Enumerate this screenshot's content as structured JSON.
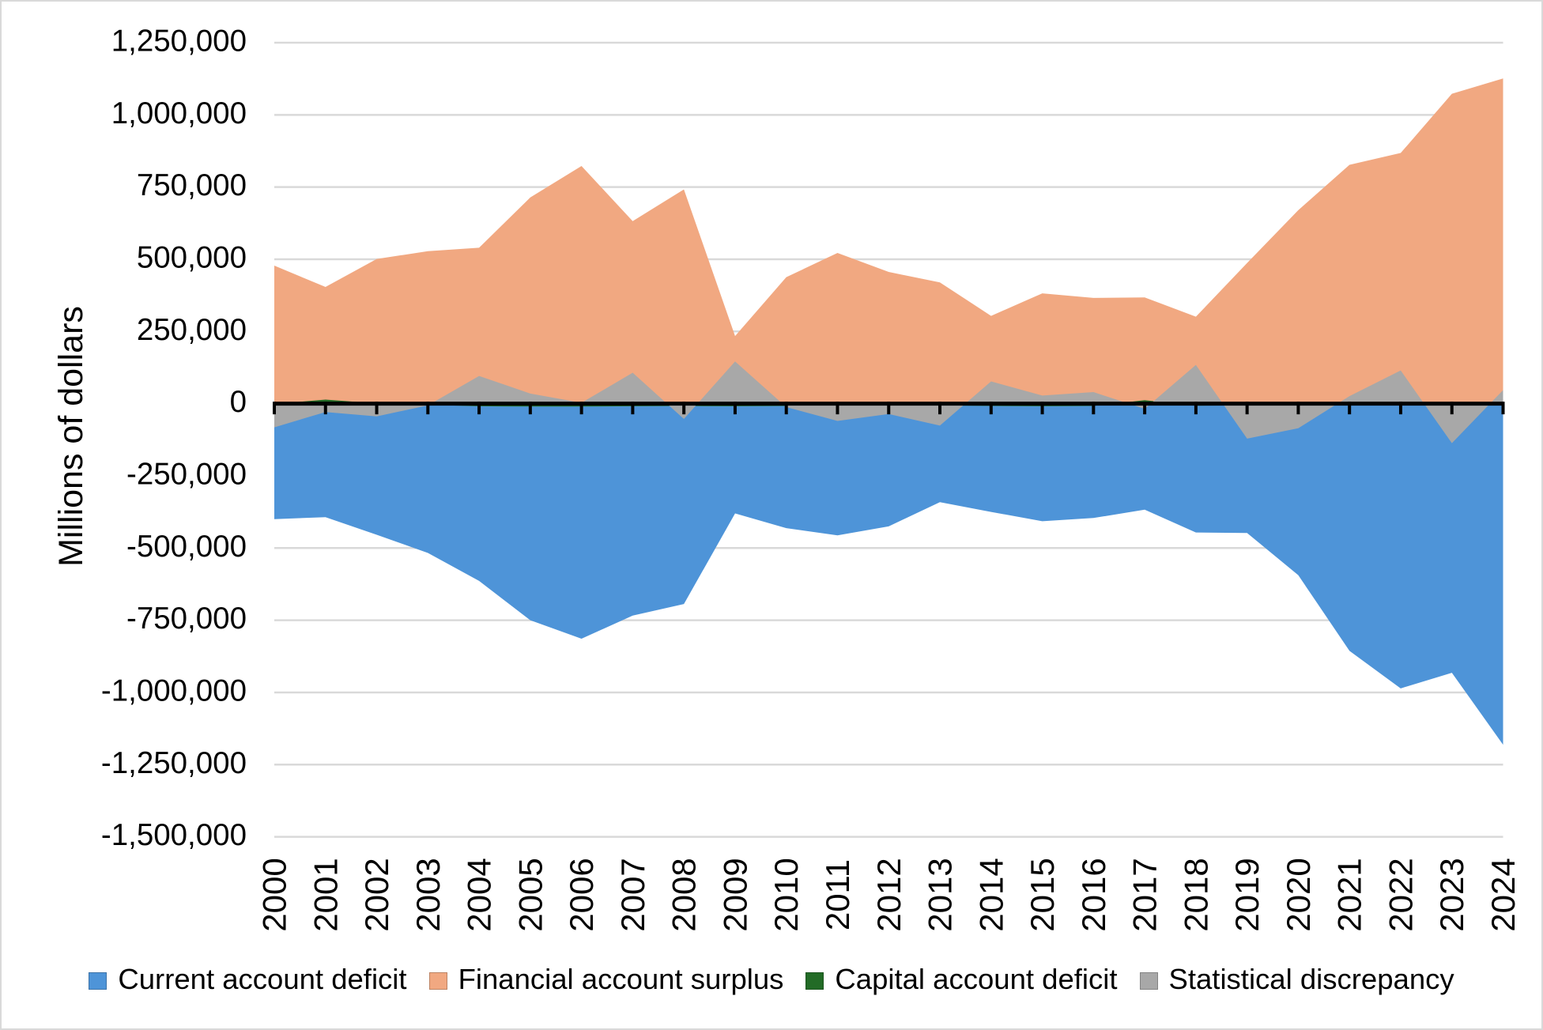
{
  "chart_data": {
    "type": "area",
    "title": "",
    "xlabel": "",
    "ylabel": "Millions of dollars",
    "categories": [
      "2000",
      "2001",
      "2002",
      "2003",
      "2004",
      "2005",
      "2006",
      "2007",
      "2008",
      "2009",
      "2010",
      "2011",
      "2012",
      "2013",
      "2014",
      "2015",
      "2016",
      "2017",
      "2018",
      "2019",
      "2020",
      "2021",
      "2022",
      "2023",
      "2024"
    ],
    "series": [
      {
        "name": "Current account deficit",
        "color": "#4E94D8",
        "values": [
          -400000,
          -393000,
          -454000,
          -517000,
          -614000,
          -750000,
          -814000,
          -734000,
          -694000,
          -380000,
          -431000,
          -456000,
          -425000,
          -341000,
          -375000,
          -407000,
          -396000,
          -367000,
          -446000,
          -448000,
          -594000,
          -856000,
          -986000,
          -932000,
          -1181000
        ]
      },
      {
        "name": "Financial account surplus",
        "color": "#F1A881",
        "values": [
          478000,
          404000,
          501000,
          528000,
          540000,
          714000,
          823000,
          632000,
          742000,
          234000,
          438000,
          522000,
          456000,
          420000,
          304000,
          382000,
          366000,
          368000,
          301000,
          487000,
          670000,
          827000,
          868000,
          1073000,
          1126000
        ]
      },
      {
        "name": "Capital account deficit",
        "color": "#226B26",
        "values": [
          -1000,
          14000,
          1000,
          -4000,
          -9000,
          -10000,
          -10000,
          -9000,
          -8000,
          -9000,
          -8000,
          -6000,
          -6000,
          -6000,
          -8000,
          -9000,
          -8000,
          12000,
          -7000,
          -6000,
          -5000,
          -3000,
          -5000,
          -8000,
          -3000
        ]
      },
      {
        "name": "Statistical discrepancy",
        "color": "#A8A8A8",
        "values": [
          -82000,
          -29000,
          -44000,
          -6000,
          96000,
          35000,
          3000,
          107000,
          -53000,
          146000,
          -12000,
          -60000,
          -36000,
          -76000,
          77000,
          28000,
          40000,
          -18000,
          134000,
          -121000,
          -85000,
          26000,
          115000,
          -137000,
          47000
        ]
      }
    ],
    "ylim": [
      -1500000,
      1250000
    ],
    "ytick_step": 250000,
    "grid": true,
    "legend_position": "bottom",
    "gridline_color": "#D9D9D9",
    "axis_color": "#000000",
    "text_color": "#000000"
  }
}
